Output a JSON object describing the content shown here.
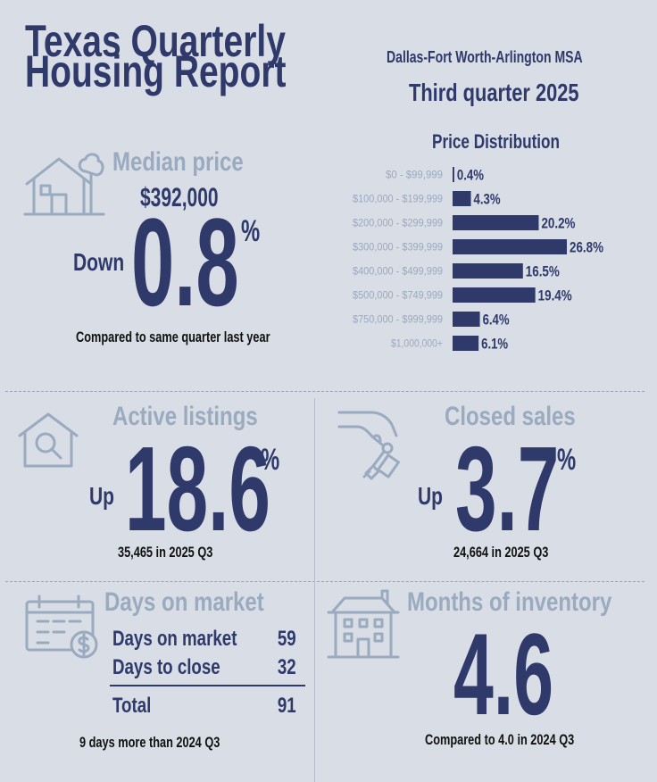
{
  "header": {
    "title_line1": "Texas Quarterly",
    "title_line2": "Housing Report",
    "region": "Dallas-Fort Worth-Arlington MSA",
    "period": "Third quarter 2025"
  },
  "median_price": {
    "title": "Median price",
    "price": "$392,000",
    "direction": "Down",
    "change": "0.8",
    "unit": "%",
    "note": "Compared to same quarter last year",
    "icon": "house-tree-icon"
  },
  "chart_data": {
    "type": "bar",
    "orientation": "horizontal",
    "title": "Price Distribution",
    "categories": [
      "$0 - $99,999",
      "$100,000 - $199,999",
      "$200,000 - $299,999",
      "$300,000 - $399,999",
      "$400,000 - $499,999",
      "$500,000 - $749,999",
      "$750,000 - $999,999",
      "$1,000,000+"
    ],
    "values": [
      0.4,
      4.3,
      20.2,
      26.8,
      16.5,
      19.4,
      6.4,
      6.1
    ],
    "value_labels": [
      "0.4%",
      "4.3%",
      "20.2%",
      "26.8%",
      "16.5%",
      "19.4%",
      "6.4%",
      "6.1%"
    ],
    "xlim": [
      0,
      26.8
    ],
    "grid": false,
    "bar_color": "#2f3a6b"
  },
  "active_listings": {
    "title": "Active listings",
    "direction": "Up",
    "change": "18.6",
    "unit": "%",
    "note": "35,465 in 2025 Q3",
    "icon": "house-search-icon"
  },
  "closed_sales": {
    "title": "Closed sales",
    "direction": "Up",
    "change": "3.7",
    "unit": "%",
    "note": "24,664 in 2025 Q3",
    "icon": "hand-keys-icon"
  },
  "days_on_market": {
    "title": "Days on market",
    "rows": [
      {
        "label": "Days on market",
        "value": "59"
      },
      {
        "label": "Days to close",
        "value": "32"
      }
    ],
    "total_label": "Total",
    "total_value": "91",
    "note": "9 days more than 2024 Q3",
    "icon": "calendar-dollar-icon"
  },
  "months_of_inventory": {
    "title": "Months of inventory",
    "value": "4.6",
    "note": "Compared to 4.0 in 2024 Q3",
    "icon": "apartment-building-icon"
  },
  "colors": {
    "navy": "#2f3a6b",
    "muted": "#9aaabf",
    "background": "#d8dde6"
  }
}
